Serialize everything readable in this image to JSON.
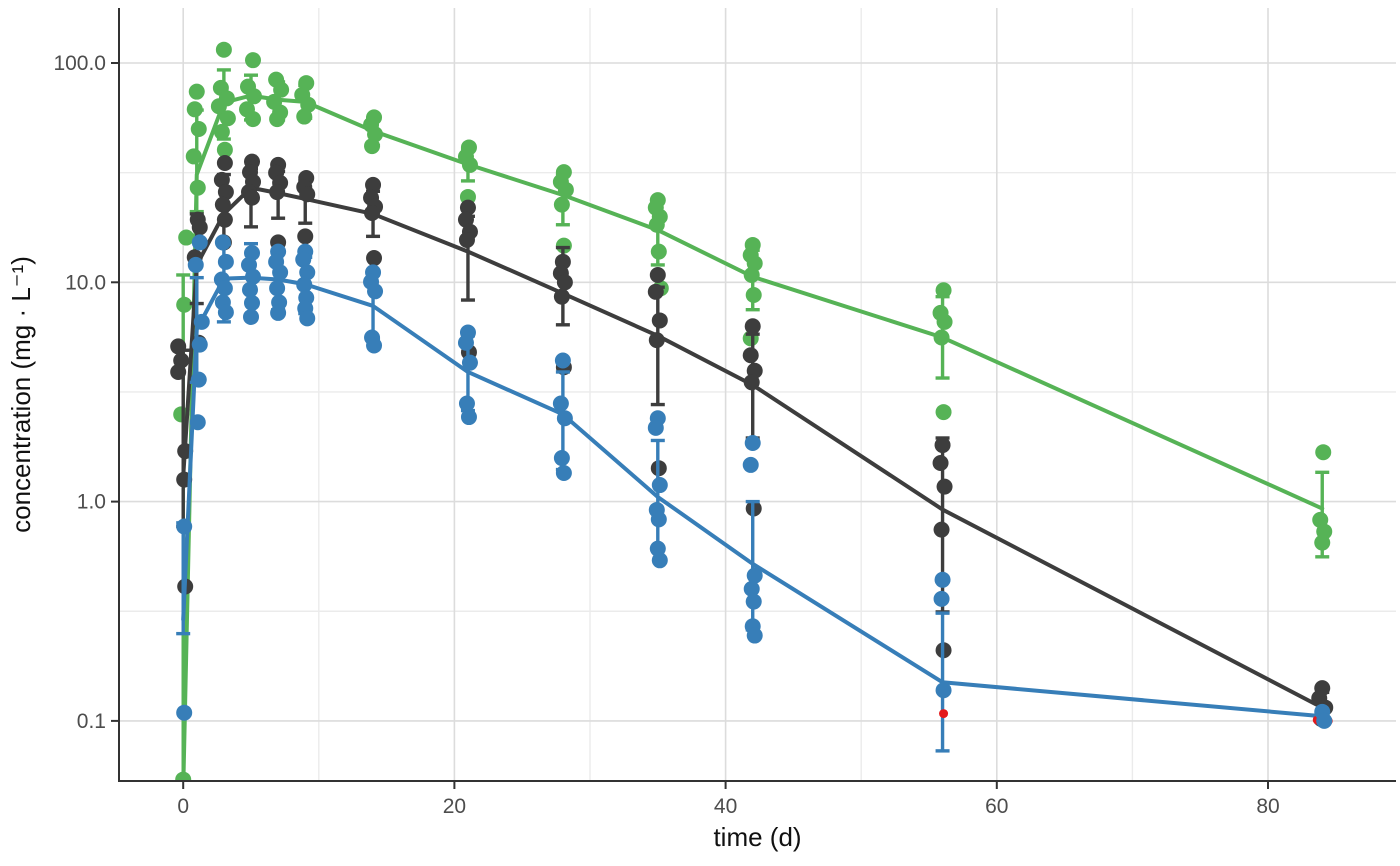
{
  "chart_data": {
    "type": "scatter",
    "title": "",
    "xlabel": "time (d)",
    "ylabel": "concentration (mg · L⁻¹)",
    "x_scale": "linear",
    "y_scale": "log10",
    "xlim": [
      -4.7,
      89.5
    ],
    "ylim": [
      0.053,
      175
    ],
    "x_major_ticks": [
      0,
      20,
      40,
      60,
      80
    ],
    "x_tick_labels": [
      "0",
      "20",
      "40",
      "60",
      "80"
    ],
    "x_minor_gridlines": [
      10,
      30,
      50,
      70
    ],
    "y_major_ticks": [
      0.1,
      1,
      10,
      100
    ],
    "y_tick_labels": [
      "0.1",
      "1.0",
      "10.0",
      "100.0"
    ],
    "y_minor_gridlines": [
      0.3162,
      3.162,
      31.62
    ],
    "grid": true,
    "legend": "none",
    "colors": {
      "grid_major": "#dcdcdc",
      "grid_minor": "#ebebeb",
      "axis_line": "#333333",
      "tick_label": "#4d4d4d",
      "axis_title": "#111111",
      "outlier": "#e41a1c"
    },
    "times": [
      0,
      1,
      3,
      5,
      7,
      9,
      14,
      21,
      28,
      35,
      42,
      56,
      84
    ],
    "series": [
      {
        "name": "green",
        "color": "#56b356",
        "mean": [
          0.048,
          31,
          66,
          71,
          68,
          66.5,
          49,
          34.5,
          25,
          17.3,
          10.6,
          5.6,
          0.93
        ],
        "err_lo": [
          0.03,
          21,
          45,
          55,
          55,
          56,
          42,
          29,
          18.3,
          12,
          7.5,
          3.66,
          0.56
        ],
        "err_hi": [
          10.8,
          61,
          93,
          88,
          82,
          79,
          56,
          40.5,
          31,
          23.5,
          14,
          8.6,
          1.36
        ],
        "points": [
          [
            0,
            16,
            3
          ],
          [
            0,
            7.9,
            1
          ],
          [
            0,
            2.5,
            -2
          ],
          [
            0,
            0.054,
            0
          ],
          [
            1,
            74,
            0
          ],
          [
            1,
            61.5,
            -2
          ],
          [
            1,
            50,
            2
          ],
          [
            1,
            37.5,
            -3
          ],
          [
            1,
            27,
            1
          ],
          [
            3,
            115,
            0
          ],
          [
            3,
            77,
            -3
          ],
          [
            3,
            69,
            3
          ],
          [
            3,
            63.5,
            -5
          ],
          [
            3,
            56,
            4
          ],
          [
            3,
            48.5,
            -2
          ],
          [
            3,
            40.2,
            1
          ],
          [
            5,
            103,
            2
          ],
          [
            5,
            78,
            -3
          ],
          [
            5,
            70.5,
            3
          ],
          [
            5,
            61.5,
            -4
          ],
          [
            5,
            55.5,
            2
          ],
          [
            7,
            84,
            -2
          ],
          [
            7,
            75.5,
            3
          ],
          [
            7,
            66.5,
            -4
          ],
          [
            7,
            59.5,
            2
          ],
          [
            7,
            55.5,
            -1
          ],
          [
            9,
            81,
            1
          ],
          [
            9,
            71.5,
            -3
          ],
          [
            9,
            64.5,
            3
          ],
          [
            9,
            57,
            -1
          ],
          [
            14,
            56.5,
            1
          ],
          [
            14,
            52.3,
            -2
          ],
          [
            14,
            47.3,
            2
          ],
          [
            14,
            41.8,
            -1
          ],
          [
            21,
            41.2,
            1
          ],
          [
            21,
            37.4,
            -2
          ],
          [
            21,
            34.3,
            2
          ],
          [
            21,
            24.5,
            0
          ],
          [
            28,
            31.8,
            1
          ],
          [
            28,
            28.7,
            -2
          ],
          [
            28,
            26.4,
            3
          ],
          [
            28,
            22.6,
            -1
          ],
          [
            28,
            14.7,
            1
          ],
          [
            35,
            23.7,
            0
          ],
          [
            35,
            21.9,
            -2
          ],
          [
            35,
            19.9,
            2
          ],
          [
            35,
            18.3,
            -1
          ],
          [
            35,
            13.8,
            1
          ],
          [
            35,
            9.4,
            3
          ],
          [
            42,
            14.8,
            0
          ],
          [
            42,
            13.3,
            -2
          ],
          [
            42,
            12.2,
            2
          ],
          [
            42,
            10.8,
            -1
          ],
          [
            42,
            8.75,
            1
          ],
          [
            42,
            5.55,
            -2
          ],
          [
            56,
            9.2,
            1
          ],
          [
            56,
            7.25,
            -2
          ],
          [
            56,
            6.6,
            2
          ],
          [
            56,
            5.6,
            -1
          ],
          [
            56,
            2.56,
            1
          ],
          [
            84,
            1.68,
            1
          ],
          [
            84,
            0.825,
            -2
          ],
          [
            84,
            0.73,
            2
          ],
          [
            84,
            0.65,
            0
          ]
        ]
      },
      {
        "name": "dark-gray",
        "color": "#3d3d3d",
        "mean": [
          1.3,
          12,
          20.5,
          27,
          25.5,
          24,
          20.5,
          13.8,
          8.9,
          5.7,
          3.4,
          0.92,
          0.115
        ],
        "err_lo": [
          0.77,
          8,
          15.2,
          17.9,
          19.6,
          18.6,
          16.2,
          8.3,
          6.4,
          2.77,
          1.95,
          0.314,
          0.102
        ],
        "err_hi": [
          4.9,
          20.5,
          31,
          33,
          32,
          29,
          26,
          20,
          14.4,
          9.5,
          5.8,
          1.95,
          0.135
        ],
        "points": [
          [
            0,
            5.1,
            -5
          ],
          [
            0,
            4.4,
            -2
          ],
          [
            0,
            3.9,
            -5
          ],
          [
            0,
            1.7,
            2
          ],
          [
            0,
            1.26,
            1
          ],
          [
            0,
            0.41,
            2
          ],
          [
            1,
            19.3,
            1
          ],
          [
            1,
            17.8,
            3
          ],
          [
            1,
            13,
            -2
          ],
          [
            1,
            5.3,
            2
          ],
          [
            3,
            35,
            1
          ],
          [
            3,
            29.3,
            -2
          ],
          [
            3,
            25.8,
            2
          ],
          [
            3,
            22.6,
            -1
          ],
          [
            3,
            19.3,
            1
          ],
          [
            3,
            15.2,
            0
          ],
          [
            5,
            35.5,
            1
          ],
          [
            5,
            31.8,
            -1
          ],
          [
            5,
            28.7,
            2
          ],
          [
            5,
            25.8,
            -2
          ],
          [
            5,
            24.3,
            1
          ],
          [
            7,
            34.3,
            0
          ],
          [
            7,
            31.6,
            -2
          ],
          [
            7,
            28.4,
            2
          ],
          [
            7,
            25.8,
            -1
          ],
          [
            7,
            15.2,
            0
          ],
          [
            9,
            29.9,
            1
          ],
          [
            9,
            27.2,
            -1
          ],
          [
            9,
            25.2,
            2
          ],
          [
            9,
            16.2,
            0
          ],
          [
            14,
            27.8,
            0
          ],
          [
            14,
            24.3,
            -2
          ],
          [
            14,
            22.1,
            2
          ],
          [
            14,
            20.7,
            -1
          ],
          [
            14,
            12.9,
            1
          ],
          [
            21,
            21.9,
            0
          ],
          [
            21,
            19.3,
            -2
          ],
          [
            21,
            17,
            2
          ],
          [
            21,
            15.6,
            -1
          ],
          [
            21,
            4.8,
            1
          ],
          [
            28,
            12.4,
            0
          ],
          [
            28,
            11,
            -2
          ],
          [
            28,
            10,
            2
          ],
          [
            28,
            8.6,
            -1
          ],
          [
            28,
            4.1,
            1
          ],
          [
            35,
            10.8,
            0
          ],
          [
            35,
            9.05,
            -2
          ],
          [
            35,
            6.7,
            2
          ],
          [
            35,
            5.45,
            -1
          ],
          [
            35,
            1.42,
            1
          ],
          [
            42,
            6.3,
            0
          ],
          [
            42,
            4.65,
            -2
          ],
          [
            42,
            3.95,
            2
          ],
          [
            42,
            3.5,
            -1
          ],
          [
            42,
            0.93,
            1
          ],
          [
            56,
            1.81,
            0
          ],
          [
            56,
            1.5,
            -2
          ],
          [
            56,
            1.17,
            2
          ],
          [
            56,
            0.745,
            -1
          ],
          [
            56,
            0.21,
            1
          ],
          [
            84,
            0.141,
            0
          ],
          [
            84,
            0.127,
            -3
          ],
          [
            84,
            0.115,
            3
          ],
          [
            84,
            0.102,
            -1
          ]
        ]
      },
      {
        "name": "blue",
        "color": "#377eb8",
        "mean": [
          0.29,
          6.1,
          10.4,
          10.5,
          10.3,
          9.8,
          7.8,
          3.9,
          2.5,
          1.05,
          0.52,
          0.15,
          0.105
        ],
        "err_lo": [
          0.25,
          3.5,
          6.6,
          7.0,
          7.5,
          7.2,
          5.5,
          2.6,
          1.4,
          0.6,
          0.26,
          0.073,
          0.098
        ],
        "err_hi": [
          0.8,
          10.5,
          14.9,
          15.0,
          14.0,
          13.0,
          10.8,
          5.7,
          3.9,
          1.9,
          1.0,
          0.31,
          0.112
        ],
        "points": [
          [
            0,
            0.77,
            1
          ],
          [
            0,
            0.109,
            1
          ],
          [
            1,
            15.2,
            3
          ],
          [
            1,
            12,
            -1
          ],
          [
            1,
            6.6,
            5
          ],
          [
            1,
            5.2,
            3
          ],
          [
            1,
            3.6,
            2
          ],
          [
            1,
            2.3,
            1
          ],
          [
            3,
            15.2,
            -1
          ],
          [
            3,
            12.4,
            2
          ],
          [
            3,
            10.3,
            -2
          ],
          [
            3,
            9.4,
            1
          ],
          [
            3,
            8.1,
            -1
          ],
          [
            3,
            7.3,
            2
          ],
          [
            5,
            13.6,
            1
          ],
          [
            5,
            12,
            -2
          ],
          [
            5,
            10.6,
            2
          ],
          [
            5,
            9.25,
            -1
          ],
          [
            5,
            8.05,
            1
          ],
          [
            5,
            6.95,
            0
          ],
          [
            7,
            13.8,
            0
          ],
          [
            7,
            12.4,
            -2
          ],
          [
            7,
            11.1,
            2
          ],
          [
            7,
            9.4,
            -1
          ],
          [
            7,
            8.1,
            1
          ],
          [
            7,
            7.25,
            0
          ],
          [
            9,
            13.8,
            0
          ],
          [
            9,
            12.7,
            -2
          ],
          [
            9,
            11.1,
            2
          ],
          [
            9,
            9.75,
            -1
          ],
          [
            9,
            8.5,
            1
          ],
          [
            9,
            7.6,
            0
          ],
          [
            9,
            6.85,
            2
          ],
          [
            14,
            11.1,
            0
          ],
          [
            14,
            10.05,
            -2
          ],
          [
            14,
            9.1,
            2
          ],
          [
            14,
            5.6,
            -1
          ],
          [
            14,
            5.15,
            1
          ],
          [
            21,
            5.9,
            0
          ],
          [
            21,
            5.3,
            -2
          ],
          [
            21,
            4.3,
            2
          ],
          [
            21,
            2.8,
            -1
          ],
          [
            21,
            2.43,
            1
          ],
          [
            28,
            4.4,
            0
          ],
          [
            28,
            2.8,
            -2
          ],
          [
            28,
            2.4,
            2
          ],
          [
            28,
            1.58,
            -1
          ],
          [
            28,
            1.35,
            1
          ],
          [
            35,
            2.4,
            0
          ],
          [
            35,
            2.17,
            -2
          ],
          [
            35,
            1.19,
            2
          ],
          [
            35,
            0.916,
            -1
          ],
          [
            35,
            0.83,
            1
          ],
          [
            35,
            0.61,
            0
          ],
          [
            35,
            0.54,
            2
          ],
          [
            42,
            1.85,
            0
          ],
          [
            42,
            1.47,
            -2
          ],
          [
            42,
            0.46,
            2
          ],
          [
            42,
            0.4,
            -1
          ],
          [
            42,
            0.35,
            1
          ],
          [
            42,
            0.27,
            0
          ],
          [
            42,
            0.245,
            2
          ],
          [
            56,
            0.44,
            0
          ],
          [
            56,
            0.36,
            -1
          ],
          [
            56,
            0.138,
            1
          ],
          [
            84,
            0.11,
            0
          ],
          [
            84,
            0.1,
            2
          ]
        ]
      }
    ],
    "outlier_points": {
      "name": "red-outliers",
      "color": "#e41a1c",
      "points": [
        [
          56,
          0.108,
          1
        ],
        [
          84,
          0.101,
          -5
        ],
        [
          84,
          0.1,
          6
        ]
      ]
    }
  }
}
